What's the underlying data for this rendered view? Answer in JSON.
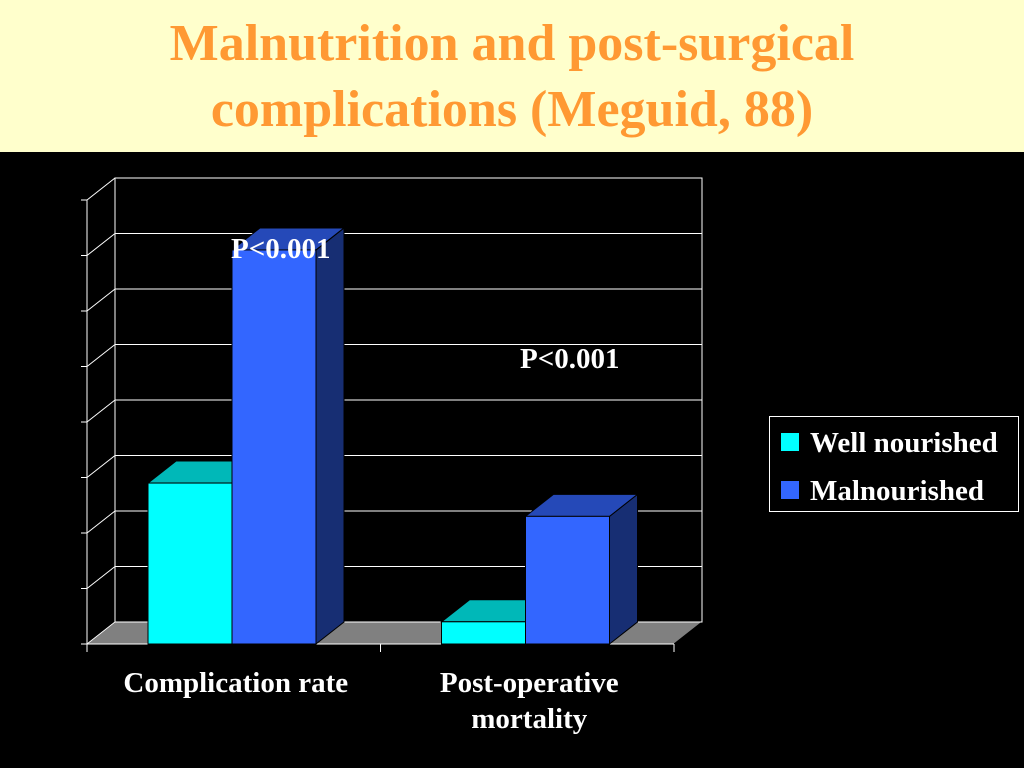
{
  "slide": {
    "title_line1": "Malnutrition and post-surgical",
    "title_line2": "complications (Meguid, 88)"
  },
  "colors": {
    "title_text": "#ff9933",
    "title_band": "#ffffcc",
    "background": "#000000",
    "series_well": "#00ffff",
    "series_mal": "#3366ff",
    "floor": "#808080",
    "grid": "#ffffff"
  },
  "chart_data": {
    "type": "bar",
    "style": "3d-clustered-column",
    "categories": [
      "Complication rate",
      "Post-operative\nmortality"
    ],
    "series": [
      {
        "name": "Well nourished",
        "values": [
          29,
          4
        ]
      },
      {
        "name": "Malnourished",
        "values": [
          71,
          23
        ]
      }
    ],
    "ylim": [
      0,
      80
    ],
    "y_tick_step": 10,
    "y_tick_labels_shown": false,
    "grid": true,
    "legend": "right",
    "annotations": [
      "P<0.001",
      "P<0.001"
    ]
  }
}
